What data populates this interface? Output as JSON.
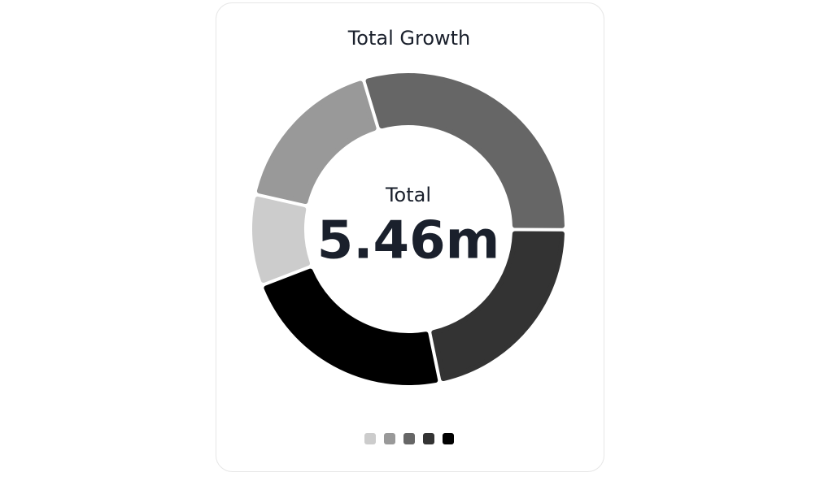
{
  "chart_data": {
    "type": "donut",
    "title": "Total Growth",
    "center_label": "Total",
    "center_value": "5.46m",
    "values": [
      9.4,
      16.8,
      29.7,
      21.7,
      22.4
    ],
    "colors": [
      "#cccccc",
      "#999999",
      "#666666",
      "#333333",
      "#000000"
    ]
  }
}
